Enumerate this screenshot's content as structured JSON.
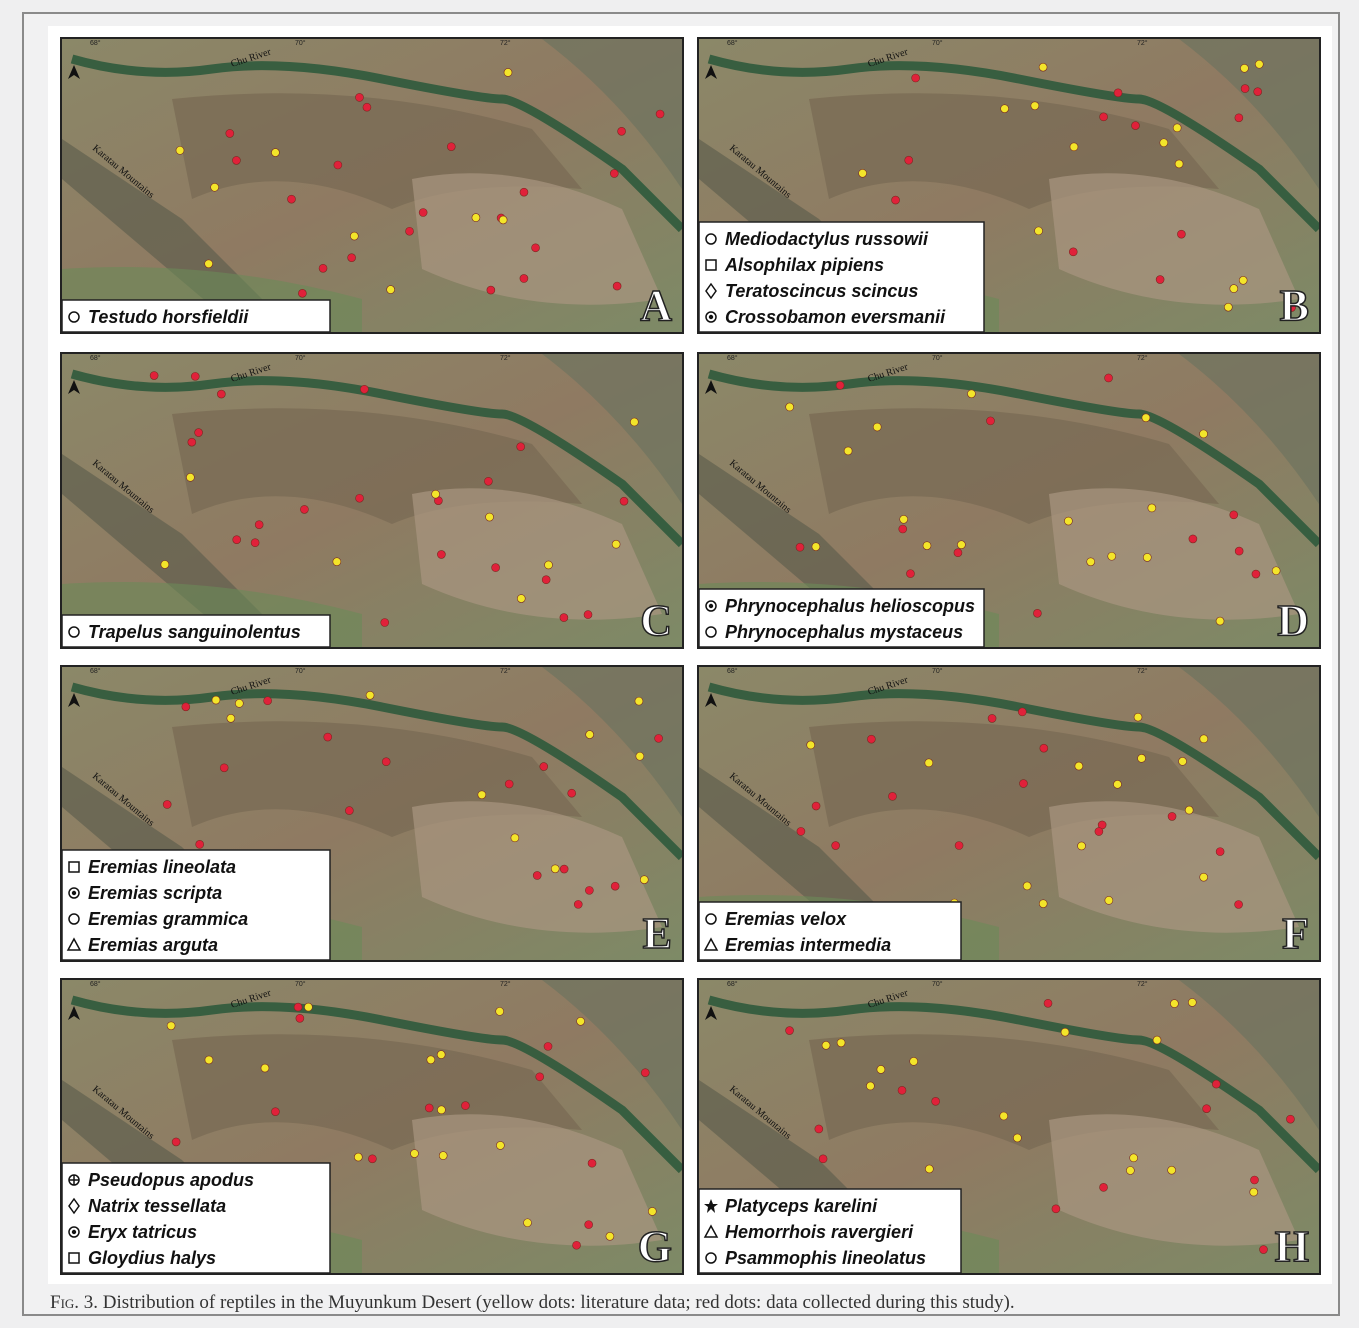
{
  "map_labels": {
    "river": "Chu River",
    "mountains": "Karatau Mountains",
    "longitudes": [
      "68°",
      "70°",
      "72°"
    ]
  },
  "panels": [
    {
      "letter": "A",
      "legend": [
        "Testudo horsfieldii"
      ]
    },
    {
      "letter": "B",
      "legend": [
        "Mediodactylus russowii",
        "Alsophilax pipiens",
        "Teratoscincus scincus",
        "Crossobamon eversmanii"
      ]
    },
    {
      "letter": "C",
      "legend": [
        "Trapelus sanguinolentus"
      ]
    },
    {
      "letter": "D",
      "legend": [
        "Phrynocephalus helioscopus",
        "Phrynocephalus mystaceus"
      ]
    },
    {
      "letter": "E",
      "legend": [
        "Eremias lineolata",
        "Eremias scripta",
        "Eremias grammica",
        "Eremias arguta"
      ]
    },
    {
      "letter": "F",
      "legend": [
        "Eremias velox",
        "Eremias intermedia"
      ]
    },
    {
      "letter": "G",
      "legend": [
        "Pseudopus apodus",
        "Natrix tessellata",
        "Eryx tatricus",
        "Gloydius halys"
      ]
    },
    {
      "letter": "H",
      "legend": [
        "Platyceps karelini",
        "Hemorrhois ravergieri",
        "Psammophis lineolatus"
      ]
    }
  ],
  "caption": {
    "label": "Fig. 3.",
    "text": "Distribution of reptiles in the Muyunkum Desert (yellow dots: literature data; red dots: data collected during this study)."
  }
}
